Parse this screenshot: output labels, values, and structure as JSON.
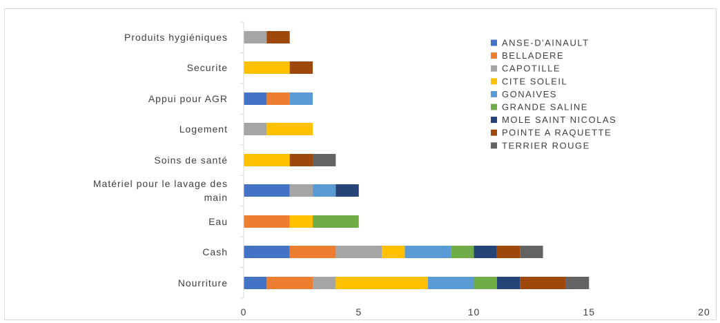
{
  "chart_data": {
    "type": "bar",
    "orientation": "horizontal",
    "stacked": true,
    "categories": [
      "Nourriture",
      "Cash",
      "Eau",
      "Matériel pour   le lavage des main",
      "Soins de santé",
      "Logement",
      "Appui pour AGR",
      "Securite",
      "Produits hygiéniques"
    ],
    "category_label_lines": [
      [
        "Nourriture"
      ],
      [
        "Cash"
      ],
      [
        "Eau"
      ],
      [
        "Matériel pour   le lavage des",
        "main"
      ],
      [
        "Soins de santé"
      ],
      [
        "Logement"
      ],
      [
        "Appui pour AGR"
      ],
      [
        "Securite"
      ],
      [
        "Produits hygiéniques"
      ]
    ],
    "series": [
      {
        "name": "ANSE-D'AINAULT",
        "color": "#4472C4",
        "values": [
          1,
          2,
          0,
          2,
          0,
          0,
          1,
          0,
          0
        ]
      },
      {
        "name": "BELLADERE",
        "color": "#ED7D31",
        "values": [
          2,
          2,
          2,
          0,
          0,
          0,
          1,
          0,
          0
        ]
      },
      {
        "name": "CAPOTILLE",
        "color": "#A5A5A5",
        "values": [
          1,
          2,
          0,
          1,
          0,
          1,
          0,
          0,
          1
        ]
      },
      {
        "name": "CITE SOLEIL",
        "color": "#FFC000",
        "values": [
          4,
          1,
          1,
          0,
          2,
          2,
          0,
          2,
          0
        ]
      },
      {
        "name": "GONAIVES",
        "color": "#5B9BD5",
        "values": [
          2,
          2,
          0,
          1,
          0,
          0,
          1,
          0,
          0
        ]
      },
      {
        "name": "GRANDE SALINE",
        "color": "#70AD47",
        "values": [
          1,
          1,
          2,
          0,
          0,
          0,
          0,
          0,
          0
        ]
      },
      {
        "name": "MOLE SAINT NICOLAS",
        "color": "#264478",
        "values": [
          1,
          1,
          0,
          1,
          0,
          0,
          0,
          0,
          0
        ]
      },
      {
        "name": "POINTE A RAQUETTE",
        "color": "#9E480E",
        "values": [
          2,
          1,
          0,
          0,
          1,
          0,
          0,
          1,
          1
        ]
      },
      {
        "name": "TERRIER ROUGE",
        "color": "#636363",
        "values": [
          1,
          1,
          0,
          0,
          1,
          0,
          0,
          0,
          0
        ]
      }
    ],
    "xlim": [
      0,
      20
    ],
    "xticks": [
      0,
      5,
      10,
      15,
      20
    ],
    "grid": false,
    "legend_position": "right",
    "title": "",
    "xlabel": "",
    "ylabel": ""
  }
}
